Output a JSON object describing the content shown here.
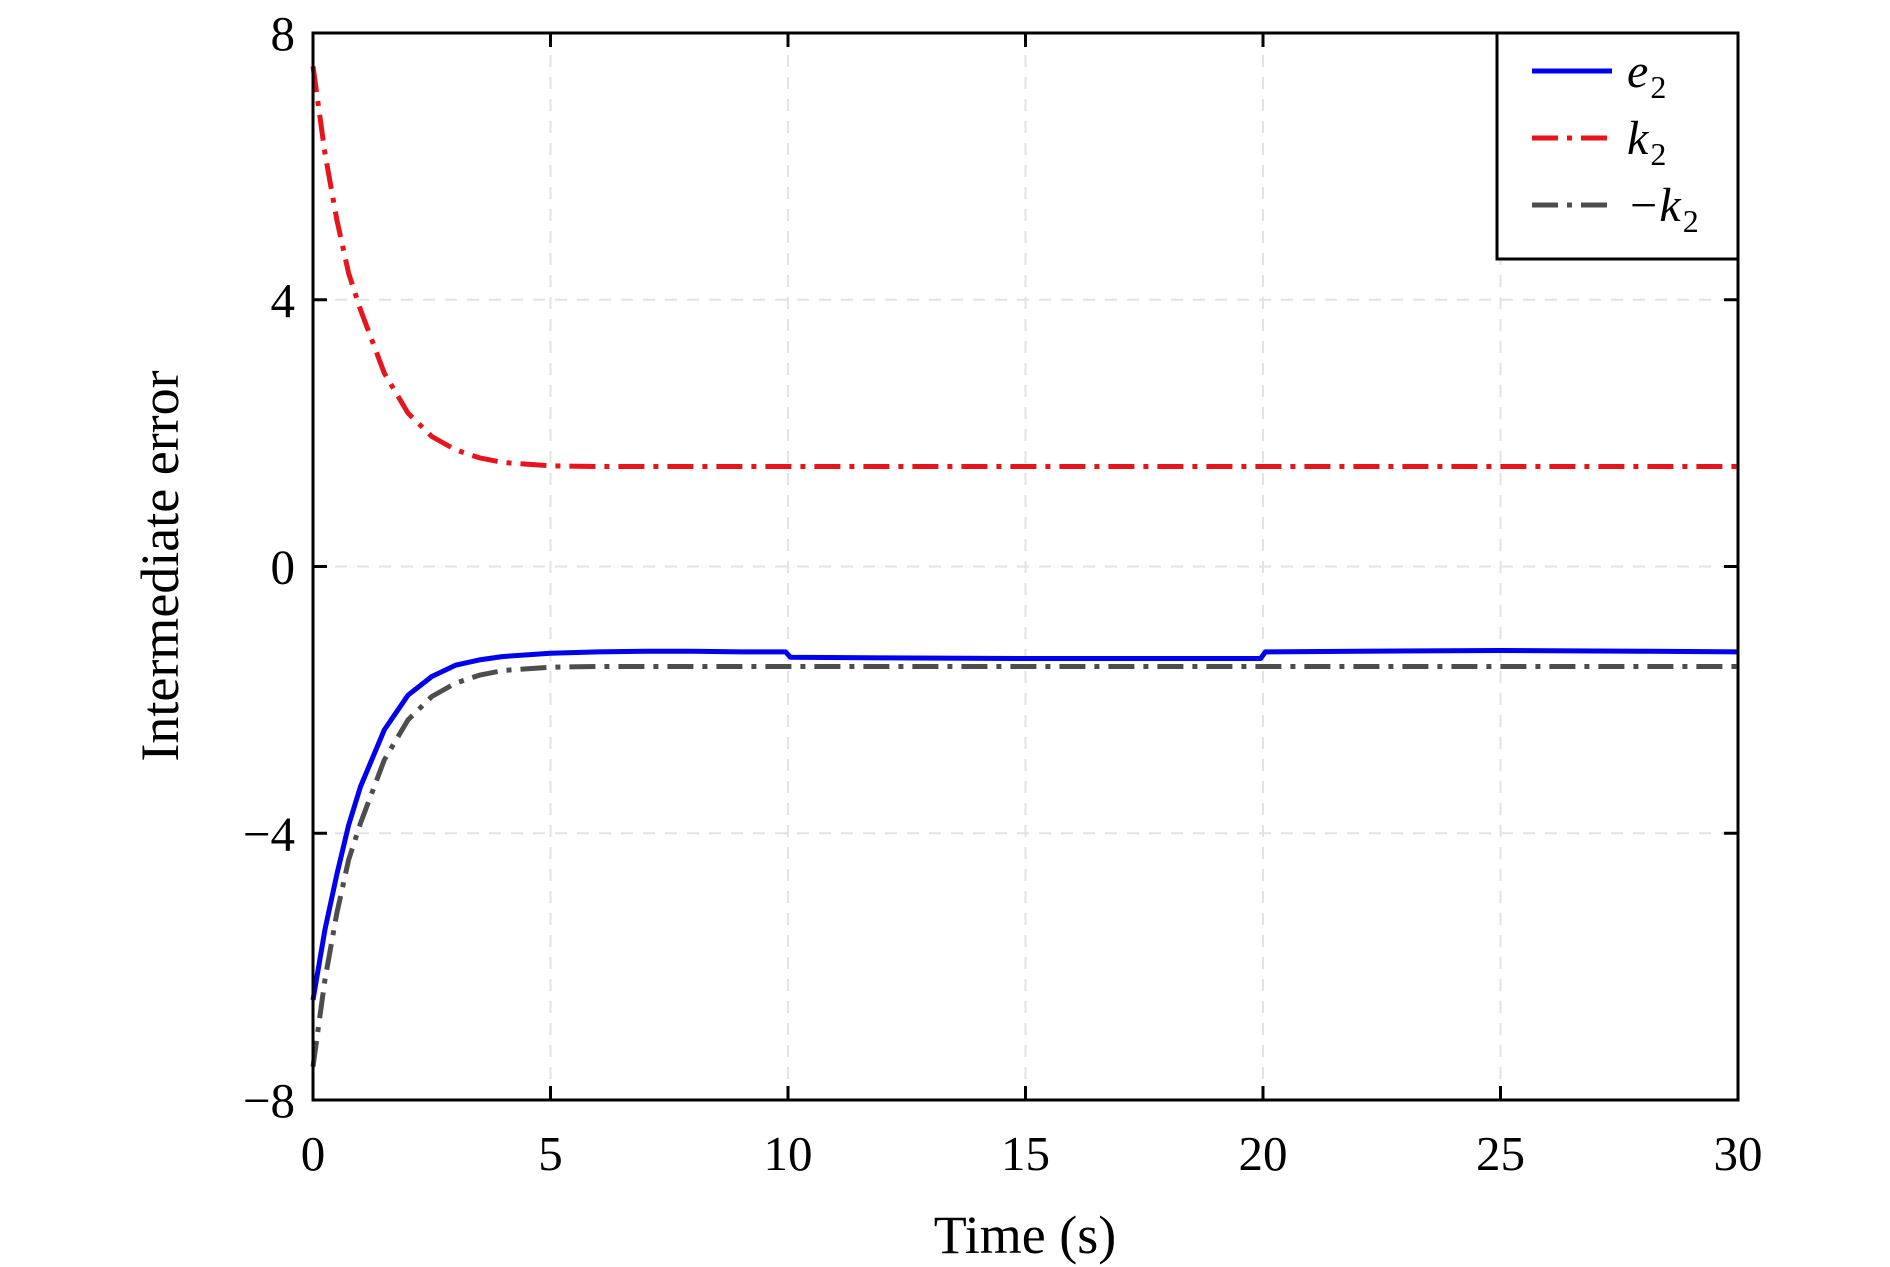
{
  "chart_data": {
    "type": "line",
    "xlabel": "Time (s)",
    "ylabel": "Intermediate error",
    "xlim": [
      0,
      30
    ],
    "ylim": [
      -8,
      8
    ],
    "xticks": [
      0,
      5,
      10,
      15,
      20,
      25,
      30
    ],
    "yticks": [
      -8,
      -4,
      0,
      4,
      8
    ],
    "xtick_labels": [
      "0",
      "5",
      "10",
      "15",
      "20",
      "25",
      "30"
    ],
    "ytick_labels": [
      "−8",
      "−4",
      "0",
      "4",
      "8"
    ],
    "grid": true,
    "legend_position": "top-right",
    "series": [
      {
        "name": "e2",
        "legend_base": "e",
        "legend_sub": "2",
        "color": "#0000ee",
        "style": "solid",
        "x": [
          0,
          0.25,
          0.5,
          0.75,
          1,
          1.5,
          2,
          2.5,
          3,
          3.5,
          4,
          5,
          6,
          7,
          8,
          9,
          9.95,
          10.05,
          12,
          15,
          18,
          19.95,
          20.05,
          22,
          25,
          28,
          30
        ],
        "y": [
          -6.5,
          -5.45,
          -4.62,
          -3.88,
          -3.3,
          -2.45,
          -1.93,
          -1.65,
          -1.48,
          -1.4,
          -1.35,
          -1.3,
          -1.28,
          -1.27,
          -1.27,
          -1.28,
          -1.28,
          -1.36,
          -1.37,
          -1.38,
          -1.38,
          -1.38,
          -1.28,
          -1.27,
          -1.26,
          -1.27,
          -1.28
        ]
      },
      {
        "name": "k2",
        "legend_base": "k",
        "legend_sub": "2",
        "color": "#e8141c",
        "style": "dashdot",
        "x": [
          0,
          0.25,
          0.5,
          0.75,
          1,
          1.5,
          2,
          2.5,
          3,
          3.5,
          4,
          5,
          6,
          8,
          10,
          15,
          20,
          25,
          30
        ],
        "y": [
          7.5,
          6.2,
          5.2,
          4.4,
          3.85,
          2.9,
          2.3,
          1.95,
          1.75,
          1.63,
          1.56,
          1.51,
          1.5,
          1.5,
          1.5,
          1.5,
          1.5,
          1.5,
          1.5
        ]
      },
      {
        "name": "−k2",
        "legend_base": "−k",
        "legend_sub": "2",
        "color": "#4d4d4d",
        "style": "dashdot",
        "x": [
          0,
          0.25,
          0.5,
          0.75,
          1,
          1.5,
          2,
          2.5,
          3,
          3.5,
          4,
          5,
          6,
          8,
          10,
          15,
          20,
          25,
          30
        ],
        "y": [
          -7.5,
          -6.2,
          -5.2,
          -4.4,
          -3.85,
          -2.9,
          -2.3,
          -1.95,
          -1.75,
          -1.63,
          -1.56,
          -1.51,
          -1.5,
          -1.5,
          -1.5,
          -1.5,
          -1.5,
          -1.5,
          -1.5
        ]
      }
    ]
  }
}
